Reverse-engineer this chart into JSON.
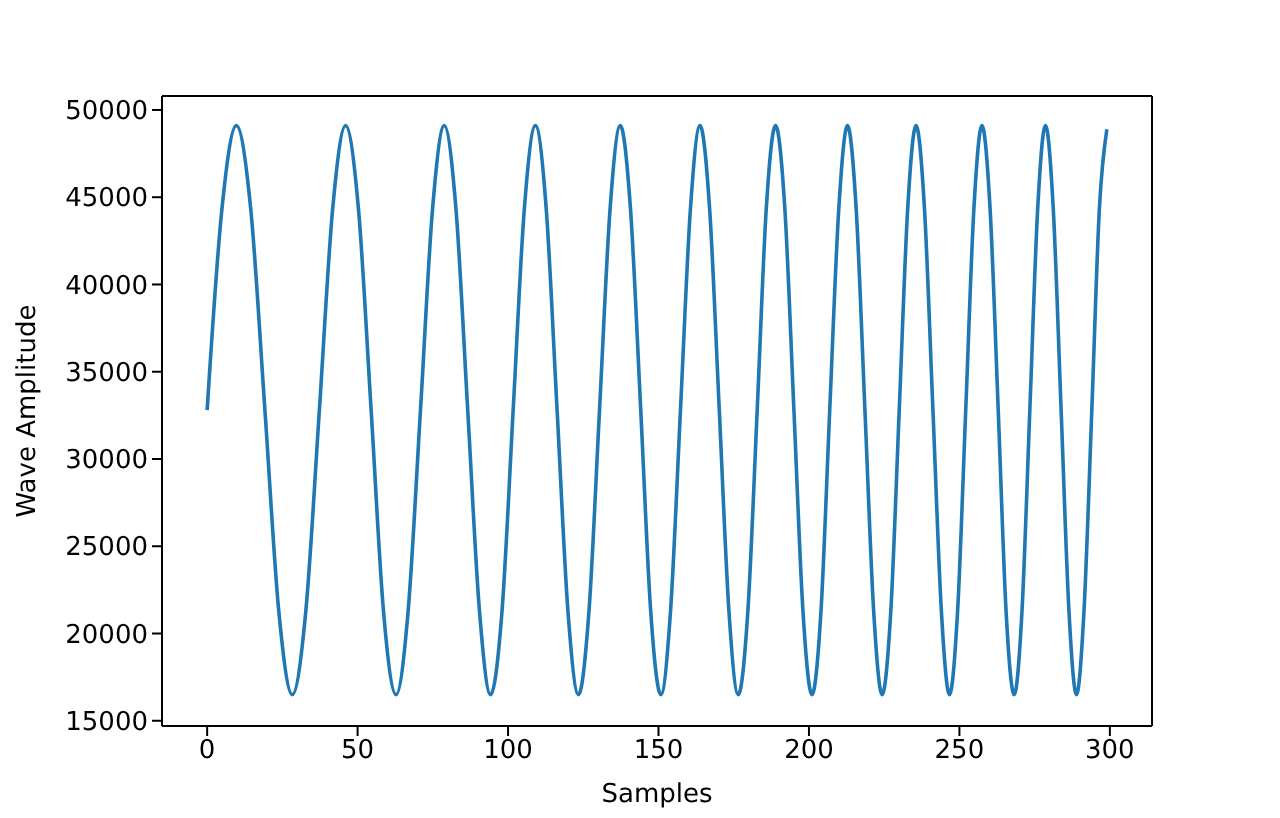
{
  "chart_data": {
    "type": "line",
    "xlabel": "Samples",
    "ylabel": "Wave Amplitude",
    "x": [
      0,
      4.9,
      9.7,
      14.5,
      19.2,
      23.8,
      28.3,
      32.8,
      37.3,
      41.7,
      46,
      50.3,
      54.5,
      58.6,
      62.8,
      66.8,
      70.9,
      74.9,
      78.8,
      82.7,
      86.6,
      90.5,
      94.2,
      98,
      101.7,
      105.4,
      109.1,
      112.7,
      116.3,
      119.9,
      123.4,
      126.9,
      130.4,
      133.9,
      137.3,
      140.7,
      144.1,
      147.4,
      150.8,
      154,
      157.3,
      160.6,
      163.8,
      167,
      170.2,
      173.4,
      176.5,
      179.7,
      182.8,
      185.8,
      188.9,
      192,
      195,
      198,
      201,
      204,
      206.9,
      209.9,
      212.8,
      215.7,
      218.6,
      221.5,
      224.3,
      227.2,
      230,
      232.8,
      235.6,
      238.4,
      241.2,
      244,
      246.7,
      249.4,
      252.1,
      254.8,
      257.5,
      260.2,
      262.9,
      265.5,
      268.2,
      270.8,
      273.4,
      276,
      278.6,
      281.2,
      283.8,
      286.4,
      288.9,
      291.4,
      294,
      296.5,
      299
    ],
    "values": [
      32800,
      44300,
      49100,
      44300,
      32800,
      21300,
      16500,
      21300,
      32800,
      44300,
      49100,
      44300,
      32800,
      21300,
      16500,
      21300,
      32800,
      44300,
      49100,
      44300,
      32800,
      21300,
      16500,
      21300,
      32800,
      44300,
      49100,
      44300,
      32800,
      21300,
      16500,
      21300,
      32800,
      44300,
      49100,
      44300,
      32800,
      21300,
      16500,
      21300,
      32800,
      44300,
      49100,
      44300,
      32800,
      21300,
      16500,
      21300,
      32800,
      44300,
      49100,
      44300,
      32800,
      21300,
      16500,
      21300,
      32800,
      44300,
      49100,
      44300,
      32800,
      21300,
      16500,
      21300,
      32800,
      44300,
      49100,
      44300,
      32800,
      21300,
      16500,
      21300,
      32800,
      44300,
      49100,
      44300,
      32800,
      21300,
      16500,
      21300,
      32800,
      44300,
      49100,
      44300,
      32800,
      21300,
      16500,
      21300,
      32800,
      44300,
      48900
    ],
    "color": "#1f77b4",
    "line_style": "solid",
    "xlim": [
      -15,
      314
    ],
    "ylim": [
      14700,
      50800
    ],
    "xticks": [
      0,
      50,
      100,
      150,
      200,
      250,
      300
    ],
    "yticks": [
      15000,
      20000,
      25000,
      30000,
      35000,
      40000,
      45000,
      50000
    ]
  }
}
